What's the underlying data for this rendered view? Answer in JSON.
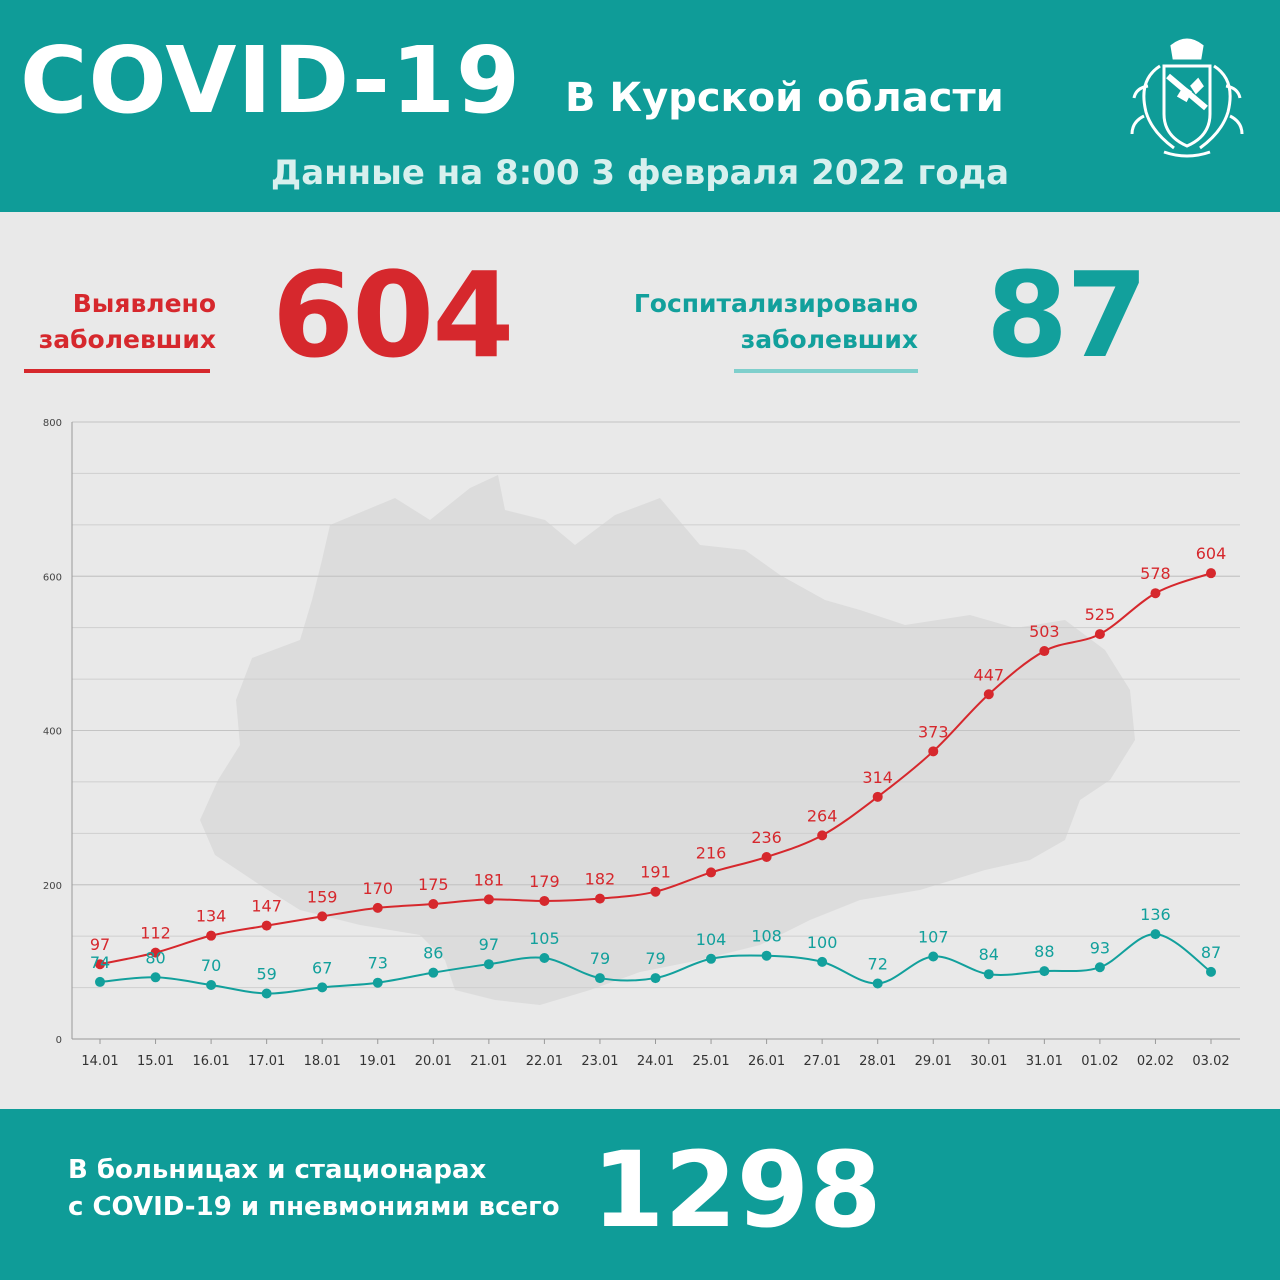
{
  "header": {
    "title": "COVID-19",
    "region": "В Курской области",
    "date": "Данные на 8:00 3 февраля 2022 года"
  },
  "stats": {
    "detected_label": [
      "Выявлено",
      "заболевших"
    ],
    "detected_value": "604",
    "hospitalized_label": [
      "Госпитализировано",
      "заболевших"
    ],
    "hospitalized_value": "87"
  },
  "footer": {
    "text": [
      "В больницах и стационарах",
      "с COVID-19 и пневмониями всего"
    ],
    "value": "1298"
  },
  "colors": {
    "teal": "#0f9c98",
    "red": "#d6282d",
    "series_teal": "#12a09c"
  },
  "chart_data": {
    "type": "line",
    "categories": [
      "14.01",
      "15.01",
      "16.01",
      "17.01",
      "18.01",
      "19.01",
      "20.01",
      "21.01",
      "22.01",
      "23.01",
      "24.01",
      "25.01",
      "26.01",
      "27.01",
      "28.01",
      "29.01",
      "30.01",
      "31.01",
      "01.02",
      "02.02",
      "03.02"
    ],
    "series": [
      {
        "values": [
          97,
          112,
          134,
          147,
          159,
          170,
          175,
          181,
          179,
          182,
          191,
          216,
          236,
          264,
          314,
          373,
          447,
          503,
          525,
          578,
          604
        ],
        "color": "#d6282d"
      },
      {
        "values": [
          74,
          80,
          70,
          59,
          67,
          73,
          86,
          97,
          105,
          79,
          79,
          104,
          108,
          100,
          72,
          107,
          84,
          88,
          93,
          136,
          87
        ],
        "color": "#12a09c"
      }
    ],
    "ylim": [
      0,
      800
    ],
    "yticks": [
      0,
      200,
      400,
      600,
      800
    ],
    "grid": true
  }
}
